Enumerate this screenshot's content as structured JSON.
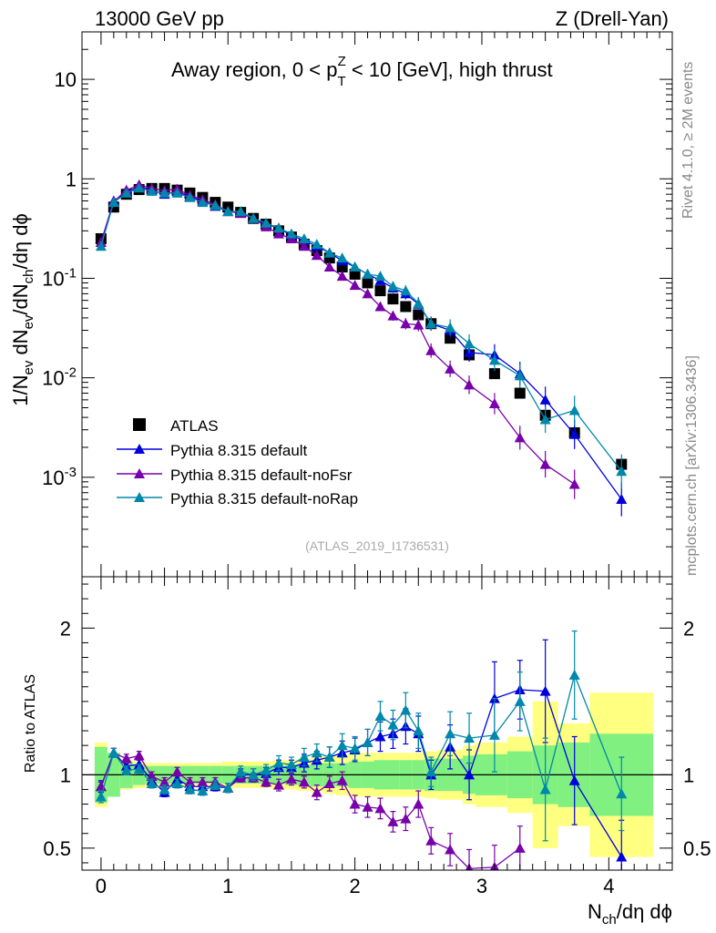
{
  "header": {
    "left": "13000 GeV pp",
    "right": "Z (Drell-Yan)"
  },
  "side_labels": {
    "rivet": "Rivet 4.1.0, ≥ 2M events",
    "mcplots": "mcplots.cern.ch [arXiv:1306.3436]"
  },
  "chart_data": [
    {
      "type": "scatter",
      "panel": "main",
      "title_parts": [
        "Away region, 0 < p",
        "T",
        "Z",
        " < 10 [GeV], high thrust"
      ],
      "analysis_id": "(ATLAS_2019_I1736531)",
      "yscale": "log",
      "xlim": [
        -0.15,
        4.5
      ],
      "ylim": [
        0.0001,
        30
      ],
      "ytick_labels": [
        {
          "value": 10,
          "base": "10",
          "exp": ""
        },
        {
          "value": 1,
          "base": "1",
          "exp": ""
        },
        {
          "value": 0.1,
          "base": "10",
          "exp": "-1"
        },
        {
          "value": 0.01,
          "base": "10",
          "exp": "-2"
        },
        {
          "value": 0.001,
          "base": "10",
          "exp": "-3"
        }
      ],
      "ylabel_parts": [
        "1/N",
        "ev",
        " dN",
        "ev",
        "/dN",
        "ch",
        "/dη dϕ"
      ],
      "series": [
        {
          "name": "ATLAS",
          "marker": "square",
          "color": "#000000",
          "x": [
            0.0,
            0.1,
            0.2,
            0.3,
            0.4,
            0.5,
            0.6,
            0.7,
            0.8,
            0.9,
            1.0,
            1.1,
            1.2,
            1.3,
            1.4,
            1.5,
            1.6,
            1.7,
            1.8,
            1.9,
            2.0,
            2.1,
            2.2,
            2.3,
            2.4,
            2.5,
            2.6,
            2.75,
            2.9,
            3.1,
            3.3,
            3.5,
            3.73,
            4.1
          ],
          "y": [
            0.25,
            0.52,
            0.7,
            0.78,
            0.8,
            0.8,
            0.77,
            0.72,
            0.65,
            0.58,
            0.52,
            0.46,
            0.4,
            0.35,
            0.3,
            0.26,
            0.22,
            0.19,
            0.16,
            0.13,
            0.11,
            0.09,
            0.075,
            0.062,
            0.052,
            0.043,
            0.035,
            0.025,
            0.017,
            0.011,
            0.007,
            0.0042,
            0.0028,
            0.00135
          ]
        },
        {
          "name": "Pythia 8.315 default",
          "marker": "triangle",
          "color": "#0000dd",
          "x": [
            0.0,
            0.1,
            0.2,
            0.3,
            0.4,
            0.5,
            0.6,
            0.7,
            0.8,
            0.9,
            1.0,
            1.1,
            1.2,
            1.3,
            1.4,
            1.5,
            1.6,
            1.7,
            1.8,
            1.9,
            2.0,
            2.1,
            2.2,
            2.3,
            2.4,
            2.5,
            2.6,
            2.75,
            2.9,
            3.1,
            3.3,
            3.5,
            3.73,
            4.1
          ],
          "y": [
            0.23,
            0.6,
            0.74,
            0.83,
            0.77,
            0.7,
            0.75,
            0.66,
            0.6,
            0.53,
            0.47,
            0.46,
            0.4,
            0.35,
            0.32,
            0.27,
            0.24,
            0.21,
            0.18,
            0.15,
            0.13,
            0.11,
            0.095,
            0.08,
            0.07,
            0.055,
            0.035,
            0.03,
            0.018,
            0.017,
            0.011,
            0.006,
            0.0027,
            0.0006
          ]
        },
        {
          "name": "Pythia 8.315 default-noFsr",
          "marker": "triangle",
          "color": "#7700aa",
          "x": [
            0.0,
            0.1,
            0.2,
            0.3,
            0.4,
            0.5,
            0.6,
            0.7,
            0.8,
            0.9,
            1.0,
            1.1,
            1.2,
            1.3,
            1.4,
            1.5,
            1.6,
            1.7,
            1.8,
            1.9,
            2.0,
            2.1,
            2.2,
            2.3,
            2.4,
            2.5,
            2.6,
            2.75,
            2.9,
            3.1,
            3.3,
            3.5,
            3.73,
            4.1
          ],
          "y": [
            0.23,
            0.59,
            0.77,
            0.87,
            0.8,
            0.76,
            0.79,
            0.68,
            0.62,
            0.55,
            0.47,
            0.45,
            0.4,
            0.33,
            0.28,
            0.25,
            0.21,
            0.17,
            0.13,
            0.105,
            0.085,
            0.07,
            0.052,
            0.042,
            0.035,
            0.034,
            0.0188,
            0.0123,
            0.0085,
            0.0055,
            0.0025,
            0.00135,
            0.00085,
            null
          ]
        },
        {
          "name": "Pythia 8.315 default-noRap",
          "marker": "triangle",
          "color": "#0088aa",
          "x": [
            0.0,
            0.1,
            0.2,
            0.3,
            0.4,
            0.5,
            0.6,
            0.7,
            0.8,
            0.9,
            1.0,
            1.1,
            1.2,
            1.3,
            1.4,
            1.5,
            1.6,
            1.7,
            1.8,
            1.9,
            2.0,
            2.1,
            2.2,
            2.3,
            2.4,
            2.5,
            2.6,
            2.75,
            2.9,
            3.1,
            3.3,
            3.5,
            3.73,
            4.1
          ],
          "y": [
            0.21,
            0.58,
            0.72,
            0.81,
            0.75,
            0.72,
            0.72,
            0.65,
            0.58,
            0.54,
            0.47,
            0.47,
            0.4,
            0.36,
            0.32,
            0.28,
            0.25,
            0.22,
            0.18,
            0.16,
            0.13,
            0.11,
            0.105,
            0.083,
            0.075,
            0.056,
            0.035,
            0.032,
            0.022,
            0.015,
            0.0105,
            0.0038,
            0.0047,
            0.00115
          ]
        }
      ]
    },
    {
      "type": "line",
      "panel": "ratio",
      "ylabel": "Ratio to ATLAS",
      "xlabel_parts": [
        "N",
        "ch",
        "/dη dϕ"
      ],
      "xlim": [
        -0.15,
        4.5
      ],
      "ylim": [
        0.35,
        2.35
      ],
      "xtick_labels": [
        "0",
        "1",
        "2",
        "3",
        "4"
      ],
      "ytick_labels": [
        "0.5",
        "1",
        "2"
      ],
      "bands": {
        "edges": [
          -0.05,
          0.05,
          0.15,
          0.25,
          0.35,
          0.45,
          0.55,
          0.65,
          0.75,
          0.85,
          0.95,
          1.05,
          1.15,
          1.25,
          1.35,
          1.45,
          1.55,
          1.65,
          1.75,
          1.85,
          1.95,
          2.05,
          2.15,
          2.25,
          2.35,
          2.45,
          2.55,
          2.65,
          2.85,
          2.95,
          3.2,
          3.4,
          3.6,
          3.85,
          4.35
        ],
        "green_halfwidth": [
          0.19,
          0.15,
          0.09,
          0.07,
          0.06,
          0.06,
          0.06,
          0.06,
          0.06,
          0.06,
          0.06,
          0.06,
          0.06,
          0.06,
          0.06,
          0.07,
          0.07,
          0.08,
          0.08,
          0.08,
          0.09,
          0.09,
          0.1,
          0.1,
          0.1,
          0.1,
          0.11,
          0.11,
          0.13,
          0.14,
          0.16,
          0.2,
          0.22,
          0.28
        ],
        "yellow_halfwidth": [
          0.22,
          0.15,
          0.1,
          0.09,
          0.08,
          0.08,
          0.08,
          0.08,
          0.08,
          0.08,
          0.09,
          0.09,
          0.09,
          0.09,
          0.1,
          0.1,
          0.11,
          0.12,
          0.13,
          0.14,
          0.15,
          0.15,
          0.15,
          0.15,
          0.15,
          0.15,
          0.16,
          0.17,
          0.2,
          0.22,
          0.26,
          0.5,
          0.35,
          0.56
        ]
      },
      "series": [
        {
          "name": "Pythia 8.315 default",
          "color": "#0000dd",
          "x": [
            0.0,
            0.1,
            0.2,
            0.3,
            0.4,
            0.5,
            0.6,
            0.7,
            0.8,
            0.9,
            1.0,
            1.1,
            1.2,
            1.3,
            1.4,
            1.5,
            1.6,
            1.7,
            1.8,
            1.9,
            2.0,
            2.1,
            2.2,
            2.3,
            2.4,
            2.5,
            2.6,
            2.75,
            2.9,
            3.1,
            3.3,
            3.5,
            3.73,
            4.1
          ],
          "y": [
            0.92,
            1.15,
            1.06,
            1.07,
            0.96,
            0.88,
            0.97,
            0.92,
            0.92,
            0.92,
            0.91,
            1.0,
            1.0,
            1.01,
            1.05,
            1.05,
            1.08,
            1.1,
            1.12,
            1.15,
            1.17,
            1.22,
            1.26,
            1.28,
            1.33,
            1.28,
            1.0,
            1.19,
            1.0,
            1.52,
            1.58,
            1.57,
            0.96,
            0.44
          ],
          "err": [
            0.04,
            0.03,
            0.03,
            0.03,
            0.03,
            0.03,
            0.03,
            0.03,
            0.03,
            0.03,
            0.03,
            0.04,
            0.04,
            0.04,
            0.05,
            0.05,
            0.06,
            0.06,
            0.07,
            0.08,
            0.08,
            0.09,
            0.1,
            0.1,
            0.12,
            0.12,
            0.1,
            0.15,
            0.17,
            0.25,
            0.2,
            0.35,
            0.3,
            0.25
          ]
        },
        {
          "name": "Pythia 8.315 default-noFsr",
          "color": "#7700aa",
          "x": [
            0.0,
            0.1,
            0.2,
            0.3,
            0.4,
            0.5,
            0.6,
            0.7,
            0.8,
            0.9,
            1.0,
            1.1,
            1.2,
            1.3,
            1.4,
            1.5,
            1.6,
            1.7,
            1.8,
            1.9,
            2.0,
            2.1,
            2.2,
            2.3,
            2.4,
            2.5,
            2.6,
            2.75,
            2.9,
            3.1,
            3.3
          ],
          "y": [
            0.92,
            1.15,
            1.11,
            1.13,
            0.99,
            0.95,
            1.02,
            0.95,
            0.95,
            0.95,
            0.91,
            0.98,
            0.98,
            0.95,
            0.93,
            0.97,
            0.95,
            0.88,
            0.94,
            0.96,
            0.8,
            0.78,
            0.77,
            0.68,
            0.7,
            0.8,
            0.55,
            0.49,
            0.36,
            0.37,
            0.5
          ],
          "err": [
            0.03,
            0.03,
            0.03,
            0.03,
            0.03,
            0.03,
            0.03,
            0.03,
            0.03,
            0.03,
            0.03,
            0.03,
            0.03,
            0.03,
            0.04,
            0.04,
            0.04,
            0.05,
            0.05,
            0.06,
            0.06,
            0.07,
            0.07,
            0.07,
            0.08,
            0.09,
            0.09,
            0.11,
            0.13,
            0.15,
            0.15
          ]
        },
        {
          "name": "Pythia 8.315 default-noRap",
          "color": "#0088aa",
          "x": [
            0.0,
            0.1,
            0.2,
            0.3,
            0.4,
            0.5,
            0.6,
            0.7,
            0.8,
            0.9,
            1.0,
            1.1,
            1.2,
            1.3,
            1.4,
            1.5,
            1.6,
            1.7,
            1.8,
            1.9,
            2.0,
            2.1,
            2.2,
            2.3,
            2.4,
            2.5,
            2.6,
            2.75,
            2.9,
            3.1,
            3.3,
            3.5,
            3.73,
            4.1
          ],
          "y": [
            0.85,
            1.15,
            1.03,
            1.04,
            0.94,
            0.9,
            0.94,
            0.9,
            0.89,
            0.93,
            0.91,
            1.02,
            1.0,
            1.03,
            1.08,
            1.07,
            1.12,
            1.15,
            1.12,
            1.2,
            1.18,
            1.22,
            1.4,
            1.34,
            1.44,
            1.3,
            1.02,
            1.28,
            1.25,
            1.27,
            1.5,
            0.9,
            1.68,
            0.87
          ],
          "err": [
            0.04,
            0.03,
            0.03,
            0.03,
            0.03,
            0.03,
            0.03,
            0.03,
            0.03,
            0.03,
            0.03,
            0.04,
            0.04,
            0.04,
            0.05,
            0.05,
            0.06,
            0.06,
            0.07,
            0.08,
            0.08,
            0.09,
            0.1,
            0.1,
            0.12,
            0.12,
            0.1,
            0.15,
            0.17,
            0.25,
            0.2,
            0.35,
            0.3,
            0.25
          ]
        }
      ]
    }
  ]
}
